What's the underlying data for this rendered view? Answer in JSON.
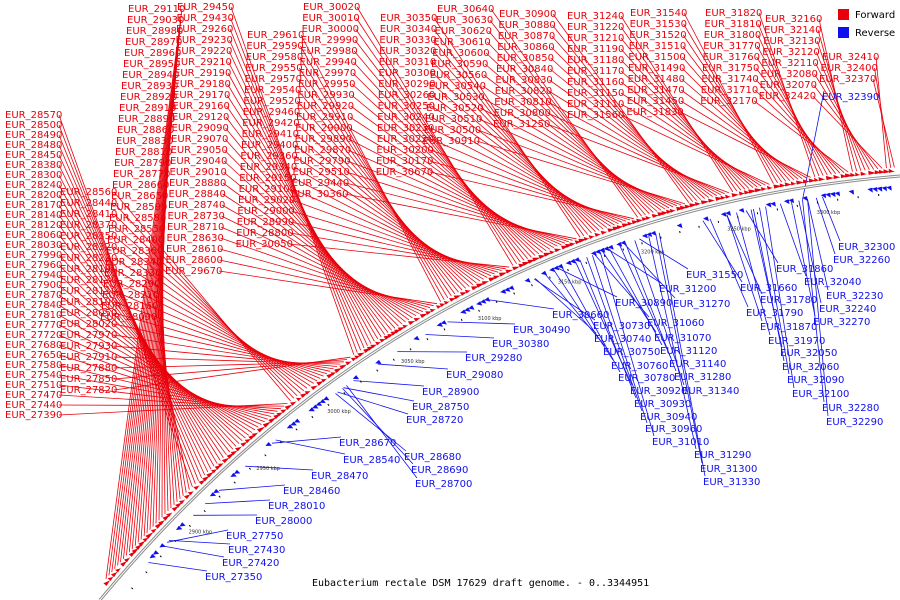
{
  "colors": {
    "forward": "#e8000b",
    "reverse": "#1010ee",
    "backbone": "#8a8a8a"
  },
  "caption": "Eubacterium rectale DSM 17629 draft genome. - 0..3344951",
  "legend": [
    {
      "label": "Forward",
      "color": "#e8000b"
    },
    {
      "label": "Reverse",
      "color": "#1010ee"
    }
  ],
  "ticks": [
    "2850 kbp",
    "2900 kbp",
    "2950 kbp",
    "3000 kbp",
    "3050 kbp",
    "3100 kbp",
    "3150 kbp",
    "3200 kbp",
    "3250 kbp",
    "3300 kbp"
  ],
  "forward_labels": [
    "EUR_29110",
    "EUR_29030",
    "EUR_28980",
    "EUR_28970",
    "EUR_28960",
    "EUR_28950",
    "EUR_28940",
    "EUR_28930",
    "EUR_28920",
    "EUR_28910",
    "EUR_28890",
    "EUR_28860",
    "EUR_28830",
    "EUR_28810",
    "EUR_28790",
    "EUR_28770",
    "EUR_28660",
    "EUR_28650",
    "EUR_28590",
    "EUR_28580",
    "EUR_28550",
    "EUR_28400",
    "EUR_28360",
    "EUR_28340",
    "EUR_28330",
    "EUR_28290",
    "EUR_28210",
    "EUR_28160",
    "EUR_28090",
    "EUR_28570",
    "EUR_28500",
    "EUR_28490",
    "EUR_28480",
    "EUR_28450",
    "EUR_28380",
    "EUR_28300",
    "EUR_28240",
    "EUR_28200",
    "EUR_28170",
    "EUR_28140",
    "EUR_28120",
    "EUR_28060",
    "EUR_28030",
    "EUR_27990",
    "EUR_27960",
    "EUR_27940",
    "EUR_27900",
    "EUR_27870",
    "EUR_27840",
    "EUR_27810",
    "EUR_27770",
    "EUR_27720",
    "EUR_27680",
    "EUR_27650",
    "EUR_27580",
    "EUR_27540",
    "EUR_27510",
    "EUR_27470",
    "EUR_27440",
    "EUR_27390",
    "EUR_28560",
    "EUR_28440",
    "EUR_28410",
    "EUR_28370",
    "EUR_28350",
    "EUR_28320",
    "EUR_28230",
    "EUR_28190",
    "EUR_28130",
    "EUR_28110",
    "EUR_28100",
    "EUR_28050",
    "EUR_28020",
    "EUR_27970",
    "EUR_27930",
    "EUR_27910",
    "EUR_27880",
    "EUR_27850",
    "EUR_27820",
    "EUR_29450",
    "EUR_29430",
    "EUR_29260",
    "EUR_29230",
    "EUR_29220",
    "EUR_29210",
    "EUR_29190",
    "EUR_29180",
    "EUR_29170",
    "EUR_29160",
    "EUR_29120",
    "EUR_29090",
    "EUR_29070",
    "EUR_29050",
    "EUR_29040",
    "EUR_29010",
    "EUR_28880",
    "EUR_28840",
    "EUR_28740",
    "EUR_28730",
    "EUR_28710",
    "EUR_28630",
    "EUR_28610",
    "EUR_28600",
    "EUR_29670",
    "EUR_29610",
    "EUR_29590",
    "EUR_29580",
    "EUR_29550",
    "EUR_29570",
    "EUR_29540",
    "EUR_29520",
    "EUR_29460",
    "EUR_29420",
    "EUR_29410",
    "EUR_29400",
    "EUR_29360",
    "EUR_29340",
    "EUR_29150",
    "EUR_29100",
    "EUR_29020",
    "EUR_29000",
    "EUR_28990",
    "EUR_28800",
    "EUR_30050",
    "EUR_30020",
    "EUR_30010",
    "EUR_30000",
    "EUR_29990",
    "EUR_29980",
    "EUR_29940",
    "EUR_29970",
    "EUR_29950",
    "EUR_29930",
    "EUR_29920",
    "EUR_29910",
    "EUR_29900",
    "EUR_29890",
    "EUR_29870",
    "EUR_29790",
    "EUR_29510",
    "EUR_29440",
    "EUR_30360",
    "EUR_30350",
    "EUR_30340",
    "EUR_30330",
    "EUR_30320",
    "EUR_30310",
    "EUR_30300",
    "EUR_30290",
    "EUR_30260",
    "EUR_30250",
    "EUR_30240",
    "EUR_30230",
    "EUR_30220",
    "EUR_30200",
    "EUR_30170",
    "EUR_30670",
    "EUR_30640",
    "EUR_30630",
    "EUR_30620",
    "EUR_30610",
    "EUR_30600",
    "EUR_30590",
    "EUR_30560",
    "EUR_30540",
    "EUR_30530",
    "EUR_30520",
    "EUR_30510",
    "EUR_30500",
    "EUR_30910",
    "EUR_30900",
    "EUR_30880",
    "EUR_30870",
    "EUR_30860",
    "EUR_30850",
    "EUR_30840",
    "EUR_30830",
    "EUR_30820",
    "EUR_30810",
    "EUR_30800",
    "EUR_31250",
    "EUR_31240",
    "EUR_31220",
    "EUR_31210",
    "EUR_31190",
    "EUR_31180",
    "EUR_31170",
    "EUR_31160",
    "EUR_31150",
    "EUR_31110",
    "EUR_31560",
    "EUR_31540",
    "EUR_31530",
    "EUR_31520",
    "EUR_31510",
    "EUR_31500",
    "EUR_31490",
    "EUR_31480",
    "EUR_31470",
    "EUR_31450",
    "EUR_31830",
    "EUR_31820",
    "EUR_31810",
    "EUR_31800",
    "EUR_31770",
    "EUR_31760",
    "EUR_31750",
    "EUR_31740",
    "EUR_31710",
    "EUR_32170",
    "EUR_32160",
    "EUR_32140",
    "EUR_32130",
    "EUR_32120",
    "EUR_32110",
    "EUR_32080",
    "EUR_32070",
    "EUR_32420",
    "EUR_32410",
    "EUR_32400",
    "EUR_32370"
  ],
  "reverse_labels": [
    "EUR_32390",
    "EUR_32300",
    "EUR_32260",
    "EUR_31550",
    "EUR_31860",
    "EUR_31660",
    "EUR_32040",
    "EUR_31780",
    "EUR_32230",
    "EUR_31790",
    "EUR_32240",
    "EUR_31870",
    "EUR_32270",
    "EUR_31970",
    "EUR_32050",
    "EUR_32060",
    "EUR_32090",
    "EUR_32100",
    "EUR_32280",
    "EUR_32290",
    "EUR_31200",
    "EUR_31270",
    "EUR_30890",
    "EUR_31060",
    "EUR_30730",
    "EUR_31070",
    "EUR_30740",
    "EUR_31120",
    "EUR_30750",
    "EUR_31140",
    "EUR_30760",
    "EUR_30780",
    "EUR_31280",
    "EUR_31340",
    "EUR_30920",
    "EUR_30930",
    "EUR_30940",
    "EUR_30960",
    "EUR_31010",
    "EUR_31290",
    "EUR_31300",
    "EUR_31330",
    "EUR_30660",
    "EUR_30490",
    "EUR_30380",
    "EUR_29280",
    "EUR_29080",
    "EUR_28900",
    "EUR_28750",
    "EUR_28720",
    "EUR_28670",
    "EUR_28540",
    "EUR_28680",
    "EUR_28690",
    "EUR_28700",
    "EUR_28470",
    "EUR_28460",
    "EUR_28010",
    "EUR_28000",
    "EUR_27750",
    "EUR_27430",
    "EUR_27420",
    "EUR_27350"
  ]
}
